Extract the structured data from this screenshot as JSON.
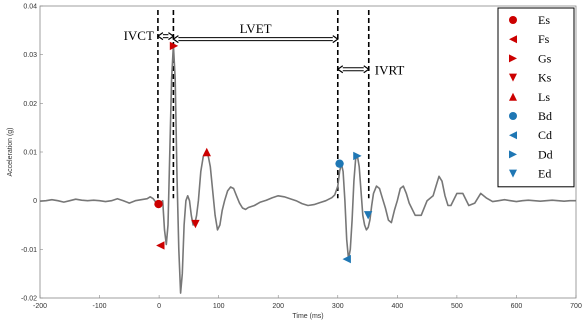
{
  "chart_data": {
    "type": "line",
    "title": "",
    "xlabel": "Time (ms)",
    "ylabel": "Acceleration (g)",
    "xlim": [
      -200,
      700
    ],
    "ylim": [
      -0.02,
      0.04
    ],
    "xticks": [
      -200,
      -100,
      0,
      100,
      200,
      300,
      400,
      500,
      600,
      700
    ],
    "xtick_labels": [
      "-200",
      "-100",
      "0",
      "100",
      "200",
      "300",
      "400",
      "500",
      "600",
      "700"
    ],
    "yticks": [
      -0.02,
      -0.01,
      0,
      0.01,
      0.02,
      0.03,
      0.04
    ],
    "ytick_labels": [
      "-0.02",
      "-0.01",
      "0",
      "0.01",
      "0.02",
      "0.03",
      "0.04"
    ],
    "grid": false,
    "legend_position": "top-right",
    "series": [
      {
        "color": "#777777",
        "x": [
          -200,
          -190,
          -180,
          -170,
          -160,
          -150,
          -140,
          -130,
          -120,
          -110,
          -100,
          -90,
          -80,
          -70,
          -60,
          -50,
          -40,
          -30,
          -20,
          -15,
          -10,
          -5,
          0,
          3,
          6,
          9,
          12,
          15,
          18,
          21,
          24,
          27,
          30,
          33,
          36,
          39,
          42,
          45,
          48,
          51,
          54,
          57,
          60,
          63,
          66,
          70,
          74,
          78,
          82,
          86,
          90,
          94,
          98,
          102,
          106,
          110,
          115,
          120,
          125,
          130,
          135,
          140,
          145,
          150,
          160,
          170,
          180,
          190,
          200,
          210,
          220,
          230,
          240,
          250,
          260,
          270,
          280,
          285,
          290,
          295,
          300,
          303,
          306,
          309,
          312,
          315,
          318,
          321,
          324,
          327,
          330,
          333,
          336,
          339,
          342,
          345,
          348,
          351,
          354,
          357,
          360,
          365,
          370,
          375,
          380,
          385,
          390,
          395,
          400,
          405,
          410,
          415,
          420,
          430,
          440,
          450,
          460,
          465,
          470,
          475,
          480,
          485,
          490,
          500,
          510,
          520,
          530,
          540,
          550,
          560,
          570,
          580,
          590,
          600,
          610,
          620,
          630,
          640,
          650,
          660,
          670,
          680,
          690,
          700
        ],
        "y": [
          -0.0001,
          0.0,
          0.0002,
          0.0,
          -0.0003,
          0.0,
          0.0003,
          0.0001,
          0.0,
          0.0001,
          0.0,
          -0.0002,
          0.0,
          0.0004,
          0.0,
          -0.0005,
          0.0,
          0.0002,
          0.0004,
          0.0008,
          0.0004,
          -0.0004,
          -0.0007,
          -0.0003,
          0.0,
          -0.006,
          -0.009,
          -0.005,
          0.01,
          0.025,
          0.032,
          0.025,
          0.005,
          -0.01,
          -0.019,
          -0.015,
          -0.005,
          0.0,
          0.001,
          0.0,
          -0.003,
          -0.005,
          -0.0048,
          -0.003,
          0.0,
          0.006,
          0.009,
          0.01,
          0.0095,
          0.007,
          0.002,
          -0.003,
          -0.006,
          -0.005,
          -0.002,
          0.0,
          0.002,
          0.0028,
          0.0025,
          0.001,
          -0.0005,
          -0.0015,
          -0.0018,
          -0.0014,
          -0.001,
          -0.0003,
          0.0001,
          0.0006,
          0.001,
          0.0008,
          0.0004,
          0.0,
          -0.0006,
          -0.001,
          -0.0008,
          -0.0004,
          0.0,
          0.0003,
          0.0006,
          0.0012,
          0.003,
          0.006,
          0.0076,
          0.006,
          0.0,
          -0.008,
          -0.012,
          -0.01,
          -0.004,
          0.004,
          0.0085,
          0.0092,
          0.007,
          0.002,
          -0.003,
          -0.005,
          -0.006,
          -0.0055,
          -0.004,
          -0.001,
          0.0015,
          0.003,
          0.0025,
          0.0005,
          -0.0015,
          -0.004,
          -0.0045,
          -0.002,
          0.0,
          0.0025,
          0.003,
          0.0015,
          -0.0005,
          -0.003,
          -0.003,
          0.0,
          0.001,
          0.003,
          0.005,
          0.004,
          0.001,
          -0.001,
          -0.001,
          0.0015,
          0.0015,
          -0.001,
          -0.0005,
          0.0015,
          0.0005,
          -0.0002,
          0.0,
          0.0002,
          0.0,
          -0.0002,
          0.0,
          0.0001,
          0.0,
          -0.0001,
          0.0,
          0.0001,
          0.0,
          -0.0001,
          0.0,
          0.0
        ]
      }
    ],
    "markers": [
      {
        "name": "Es",
        "shape": "circle",
        "color": "#cc0000",
        "x": -1,
        "y": -0.0007
      },
      {
        "name": "Fs",
        "shape": "triangle-left",
        "color": "#cc0000",
        "x": 2,
        "y": -0.0092
      },
      {
        "name": "Gs",
        "shape": "triangle-right",
        "color": "#cc0000",
        "x": 25,
        "y": 0.0318
      },
      {
        "name": "Ks",
        "shape": "triangle-down",
        "color": "#cc0000",
        "x": 61,
        "y": -0.0048
      },
      {
        "name": "Ls",
        "shape": "triangle-up",
        "color": "#cc0000",
        "x": 80,
        "y": 0.01
      },
      {
        "name": "Bd",
        "shape": "circle",
        "color": "#1f77b4",
        "x": 303,
        "y": 0.0076
      },
      {
        "name": "Cd",
        "shape": "triangle-left",
        "color": "#1f77b4",
        "x": 315,
        "y": -0.012
      },
      {
        "name": "Dd",
        "shape": "triangle-right",
        "color": "#1f77b4",
        "x": 333,
        "y": 0.0092
      },
      {
        "name": "Ed",
        "shape": "triangle-down",
        "color": "#1f77b4",
        "x": 351,
        "y": -0.003
      }
    ],
    "vertical_lines": [
      -2,
      24,
      300,
      352
    ],
    "annotations": [
      {
        "label": "IVCT",
        "from": -2,
        "to": 24,
        "y": 0.0338
      },
      {
        "label": "LVET",
        "from": 24,
        "to": 300,
        "y": 0.0332
      },
      {
        "label": "IVRT",
        "from": 300,
        "to": 352,
        "y": 0.027
      }
    ],
    "legend": [
      "Es",
      "Fs",
      "Gs",
      "Ks",
      "Ls",
      "Bd",
      "Cd",
      "Dd",
      "Ed"
    ]
  }
}
